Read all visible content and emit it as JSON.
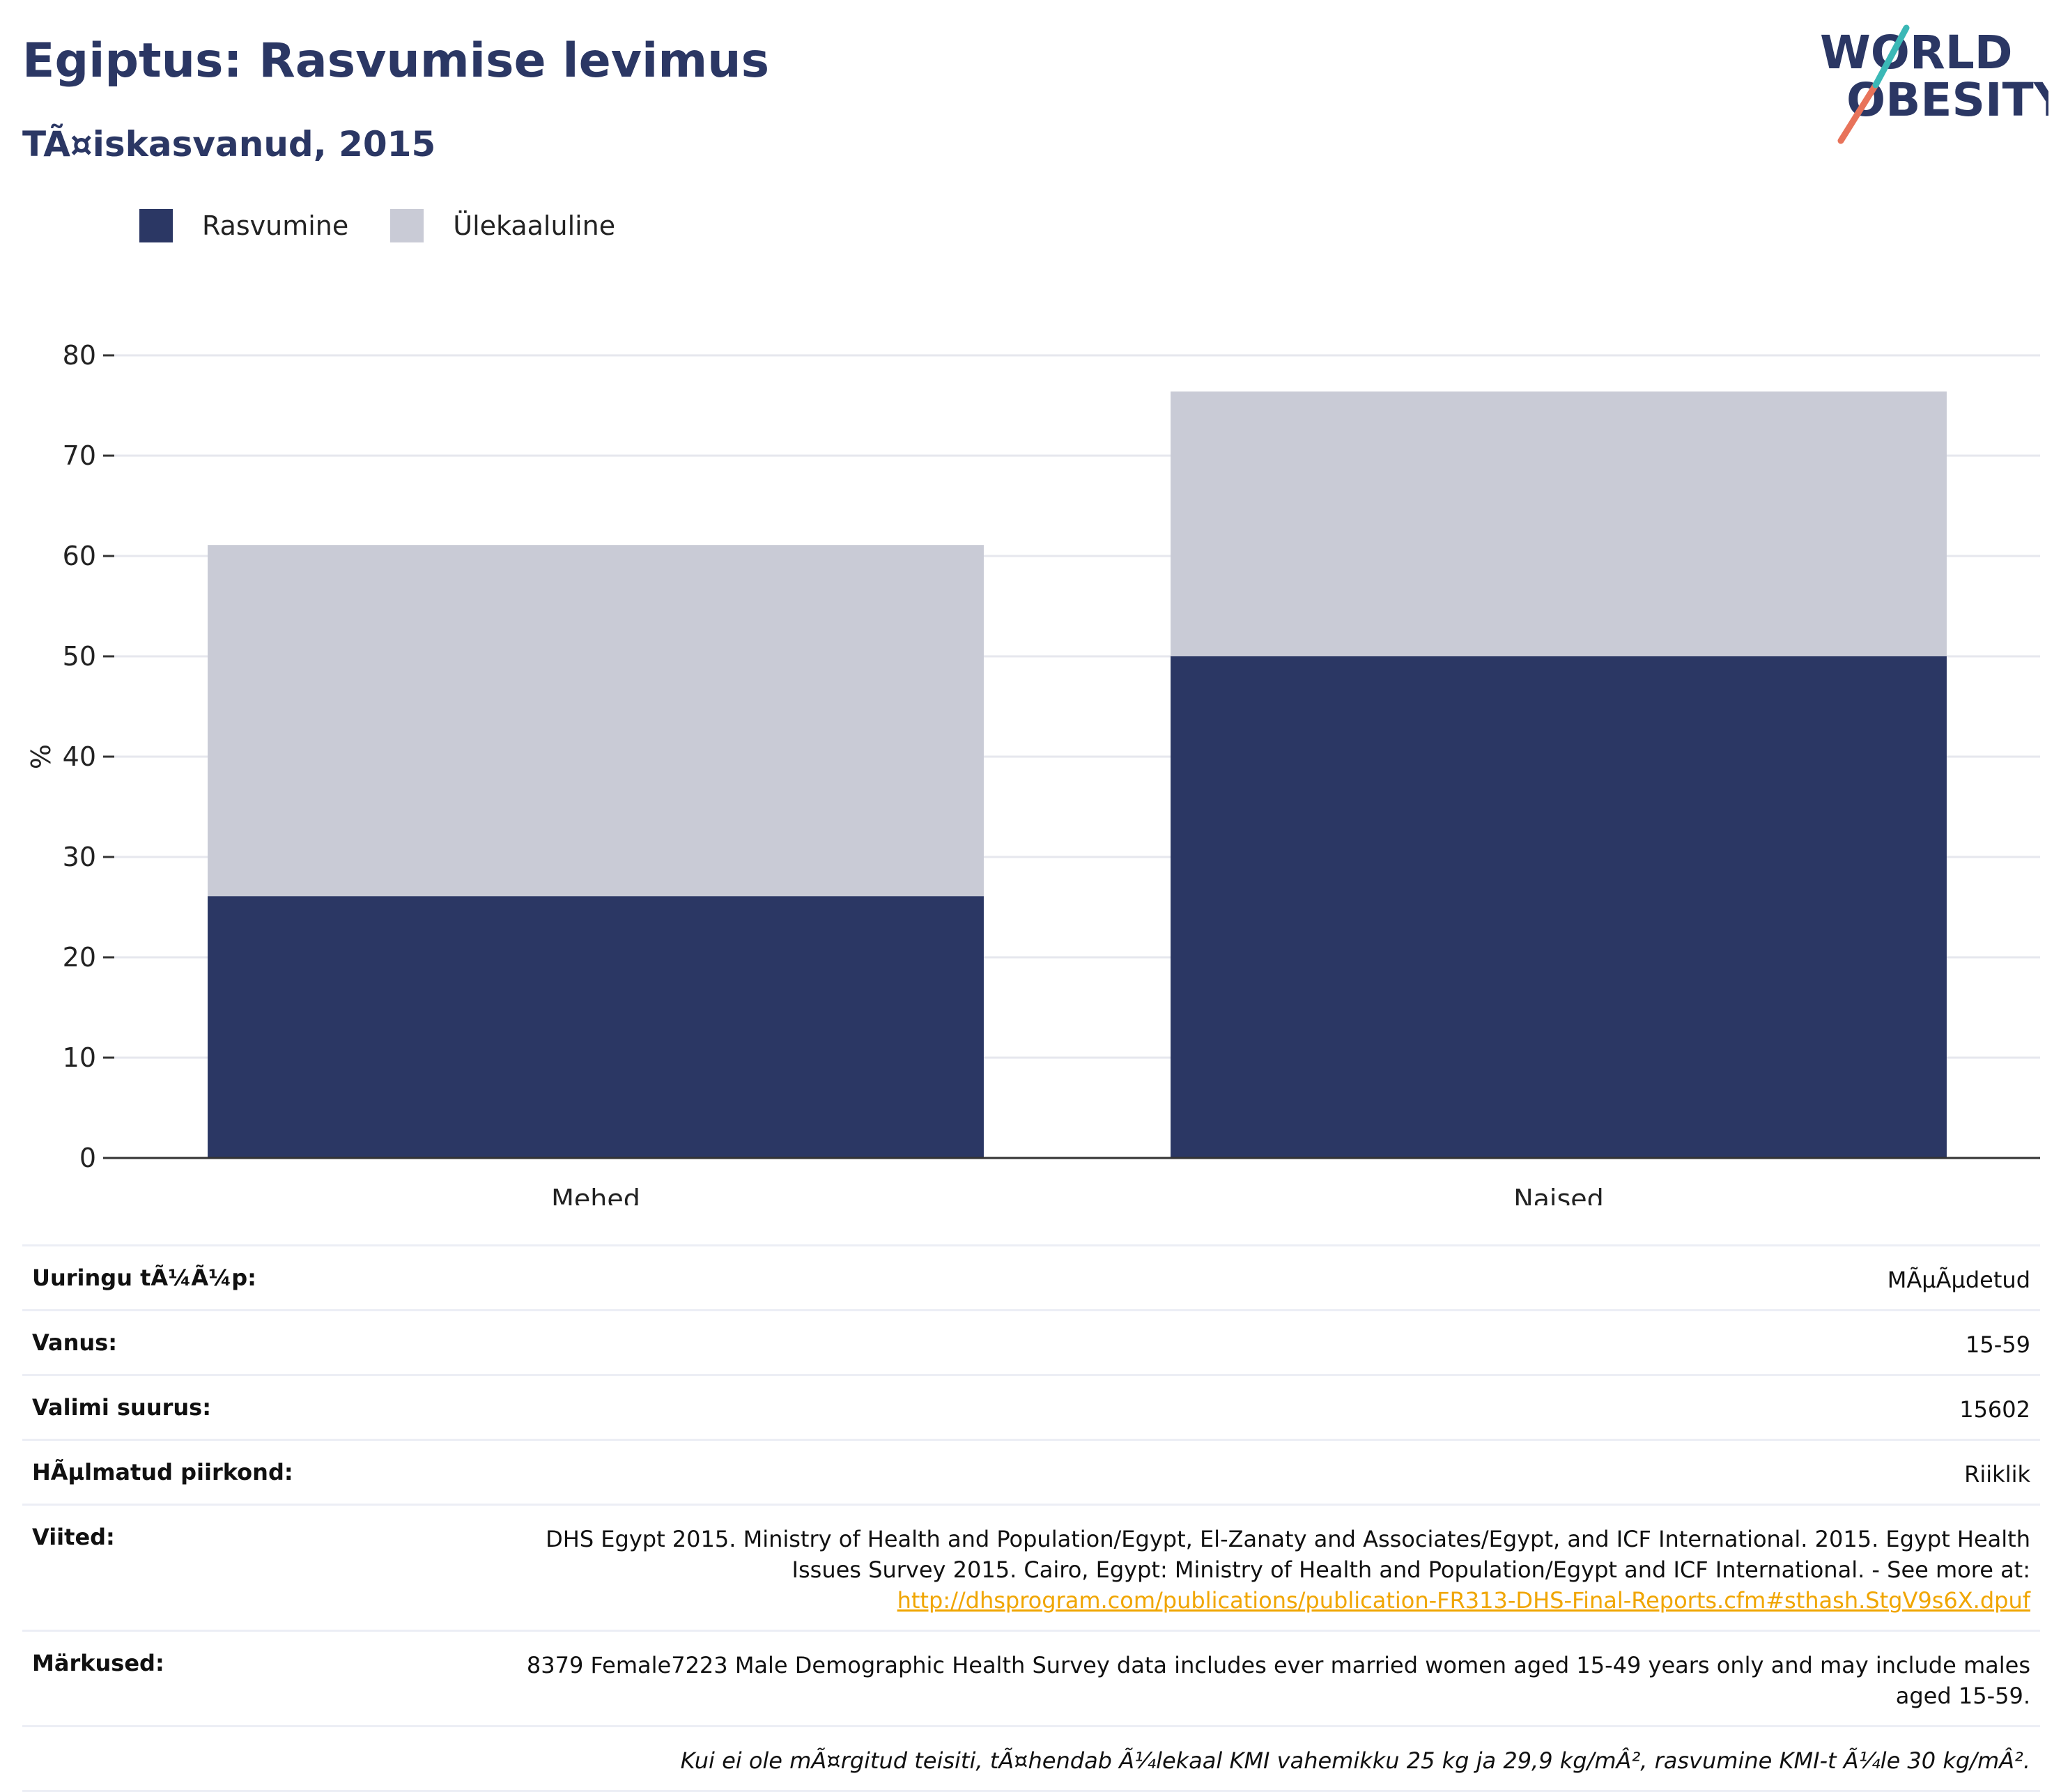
{
  "header": {
    "title": "Egiptus: Rasvumise levimus",
    "subtitle": "TÃ¤iskasvanud, 2015",
    "logo_line1": "WORLD",
    "logo_line2": "OBESITY"
  },
  "legend": {
    "items": [
      {
        "label": "Rasvumine",
        "color": "#2b3764"
      },
      {
        "label": "Ülekaaluline",
        "color": "#c9cbd6"
      }
    ]
  },
  "chart_data": {
    "type": "bar",
    "stacked": true,
    "categories": [
      "Mehed",
      "Naised"
    ],
    "series": [
      {
        "name": "Rasvumine",
        "values": [
          26.1,
          50.0
        ],
        "color": "#2b3764"
      },
      {
        "name": "Ülekaaluline",
        "values": [
          35.0,
          26.4
        ],
        "color": "#c9cbd6"
      }
    ],
    "ylabel": "%",
    "ylim": [
      0,
      80
    ],
    "yticks": [
      0,
      10,
      20,
      30,
      40,
      50,
      60,
      70,
      80
    ],
    "grid": true
  },
  "meta": {
    "rows": [
      {
        "label": "Uuringu tÃ¼Ã¼p:",
        "value": "MÃµÃµdetud"
      },
      {
        "label": "Vanus:",
        "value": "15-59"
      },
      {
        "label": "Valimi suurus:",
        "value": "15602"
      },
      {
        "label": "HÃµlmatud piirkond:",
        "value": "Riiklik"
      }
    ],
    "references_label": "Viited:",
    "references_text_1": "DHS Egypt 2015. Ministry of Health and Population/Egypt, El-Zanaty and Associates/Egypt, and ICF International. 2015. Egypt Health",
    "references_text_2": "Issues Survey 2015. Cairo, Egypt: Ministry of Health and Population/Egypt and ICF International. - See more at:",
    "references_link": "http://dhsprogram.com/publications/publication-FR313-DHS-Final-Reports.cfm#sthash.StgV9s6X.dpuf",
    "notes_label": "Märkused:",
    "notes_text_1": "8379 Female7223 Male Demographic Health Survey data includes ever married women aged 15-49 years only and may include males",
    "notes_text_2": "aged 15-59.",
    "footnote": "Kui ei ole mÃ¤rgitud teisiti, tÃ¤hendab Ã¼lekaal KMI vahemikku 25 kg ja 29,9 kg/mÂ², rasvumine KMI-t Ã¼le 30 kg/mÂ²."
  }
}
